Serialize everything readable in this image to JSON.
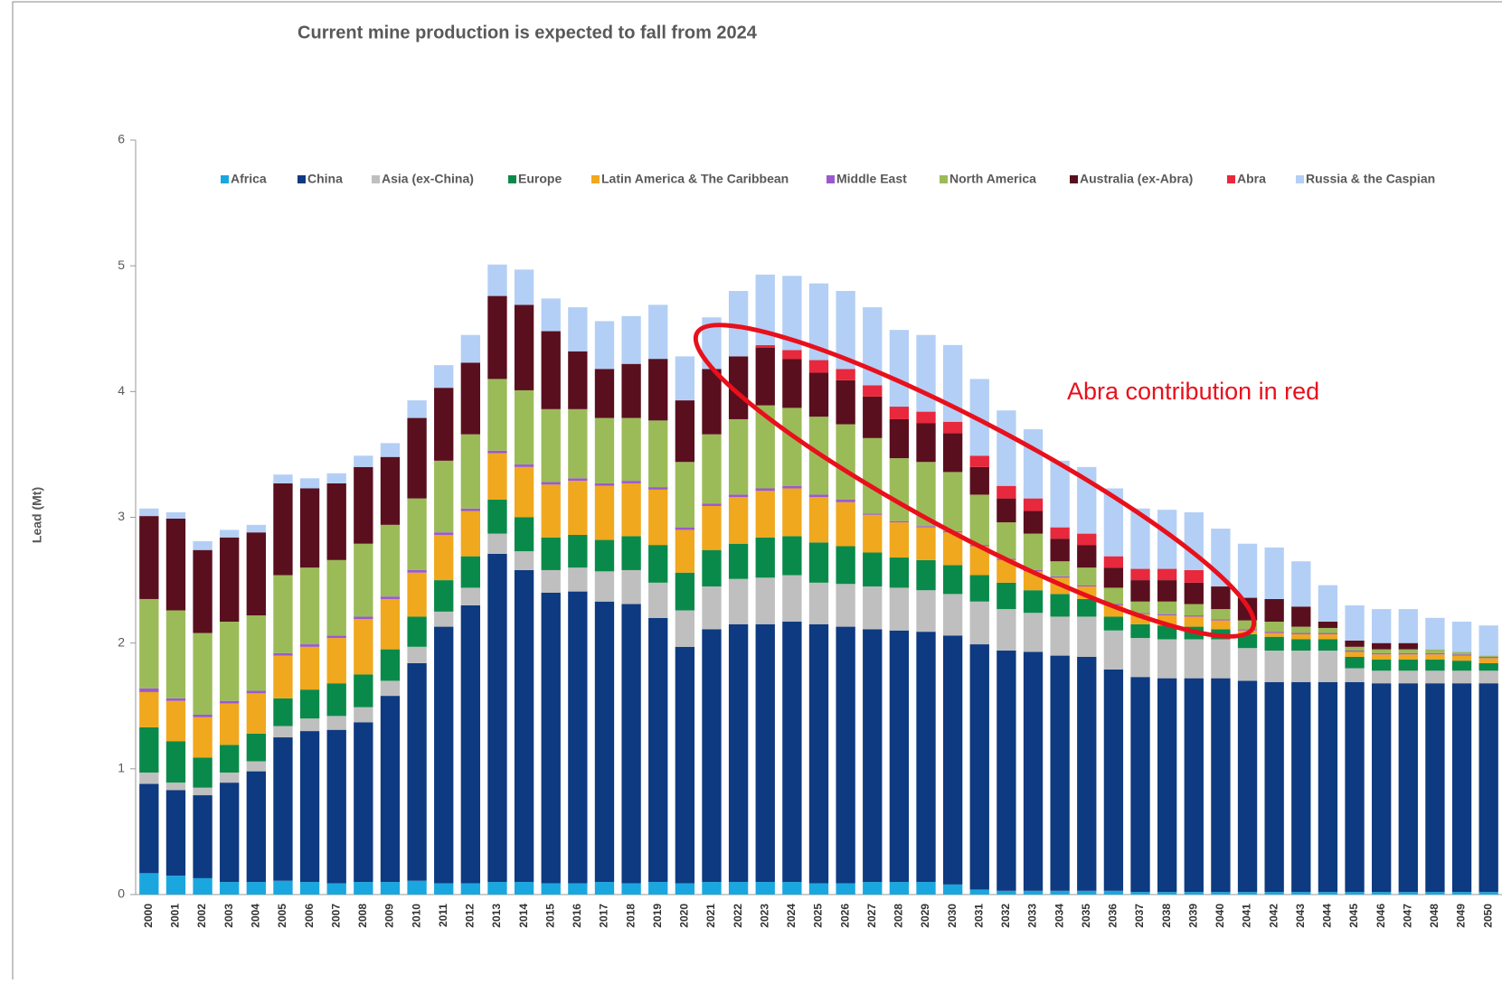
{
  "chart_data": {
    "type": "stacked_bar",
    "title": "Current mine production is expected to fall from 2024",
    "y_label": "Lead (Mt)",
    "annotation": "Abra contribution  in red",
    "categories": [
      "2000",
      "2001",
      "2002",
      "2003",
      "2004",
      "2005",
      "2006",
      "2007",
      "2008",
      "2009",
      "2010",
      "2011",
      "2012",
      "2013",
      "2014",
      "2015",
      "2016",
      "2017",
      "2018",
      "2019",
      "2020",
      "2021",
      "2022",
      "2023",
      "2024",
      "2025",
      "2026",
      "2027",
      "2028",
      "2029",
      "2030",
      "2031",
      "2032",
      "2033",
      "2034",
      "2035",
      "2036",
      "2037",
      "2038",
      "2039",
      "2040",
      "2041",
      "2042",
      "2043",
      "2044",
      "2045",
      "2046",
      "2047",
      "2048",
      "2049",
      "2050"
    ],
    "ylim": [
      0,
      6
    ],
    "yticks": [
      0,
      1,
      2,
      3,
      4,
      5,
      6
    ],
    "grid": false,
    "legend": "top",
    "series": [
      {
        "name": "Africa",
        "color": "#1aa7e0",
        "values": [
          0.17,
          0.15,
          0.13,
          0.1,
          0.1,
          0.11,
          0.1,
          0.09,
          0.1,
          0.1,
          0.11,
          0.09,
          0.09,
          0.1,
          0.1,
          0.09,
          0.09,
          0.1,
          0.09,
          0.1,
          0.09,
          0.1,
          0.1,
          0.1,
          0.1,
          0.09,
          0.09,
          0.1,
          0.1,
          0.1,
          0.08,
          0.04,
          0.03,
          0.03,
          0.03,
          0.03,
          0.03,
          0.02,
          0.02,
          0.02,
          0.02,
          0.02,
          0.02,
          0.02,
          0.02,
          0.02,
          0.02,
          0.02,
          0.02,
          0.02,
          0.02
        ]
      },
      {
        "name": "China",
        "color": "#0d3a80",
        "values": [
          0.71,
          0.68,
          0.66,
          0.79,
          0.88,
          1.14,
          1.2,
          1.22,
          1.27,
          1.48,
          1.73,
          2.04,
          2.21,
          2.61,
          2.48,
          2.31,
          2.32,
          2.23,
          2.22,
          2.1,
          1.88,
          2.01,
          2.05,
          2.05,
          2.07,
          2.06,
          2.04,
          2.01,
          2.0,
          1.99,
          1.98,
          1.95,
          1.91,
          1.9,
          1.87,
          1.86,
          1.76,
          1.71,
          1.7,
          1.7,
          1.7,
          1.68,
          1.67,
          1.67,
          1.67,
          1.67,
          1.66,
          1.66,
          1.66,
          1.66,
          1.66
        ]
      },
      {
        "name": "Asia (ex-China)",
        "color": "#bfbfbf",
        "values": [
          0.09,
          0.06,
          0.06,
          0.08,
          0.08,
          0.09,
          0.1,
          0.11,
          0.12,
          0.12,
          0.13,
          0.12,
          0.14,
          0.16,
          0.15,
          0.18,
          0.19,
          0.24,
          0.27,
          0.28,
          0.29,
          0.34,
          0.36,
          0.37,
          0.37,
          0.33,
          0.34,
          0.34,
          0.34,
          0.33,
          0.33,
          0.34,
          0.33,
          0.31,
          0.31,
          0.32,
          0.31,
          0.31,
          0.31,
          0.31,
          0.31,
          0.26,
          0.25,
          0.25,
          0.25,
          0.11,
          0.1,
          0.1,
          0.1,
          0.1,
          0.1
        ]
      },
      {
        "name": "Europe",
        "color": "#0a8a4a",
        "values": [
          0.36,
          0.33,
          0.24,
          0.22,
          0.22,
          0.22,
          0.23,
          0.26,
          0.26,
          0.25,
          0.24,
          0.25,
          0.25,
          0.27,
          0.27,
          0.26,
          0.26,
          0.25,
          0.27,
          0.3,
          0.3,
          0.29,
          0.28,
          0.32,
          0.31,
          0.32,
          0.3,
          0.27,
          0.24,
          0.24,
          0.23,
          0.21,
          0.21,
          0.18,
          0.18,
          0.14,
          0.11,
          0.11,
          0.11,
          0.1,
          0.08,
          0.11,
          0.11,
          0.09,
          0.09,
          0.09,
          0.09,
          0.09,
          0.09,
          0.08,
          0.06
        ]
      },
      {
        "name": "Latin America & The Caribbean",
        "color": "#f0a81e",
        "values": [
          0.28,
          0.32,
          0.32,
          0.33,
          0.32,
          0.34,
          0.34,
          0.36,
          0.44,
          0.4,
          0.35,
          0.36,
          0.36,
          0.37,
          0.4,
          0.42,
          0.43,
          0.43,
          0.42,
          0.44,
          0.34,
          0.35,
          0.37,
          0.37,
          0.38,
          0.36,
          0.35,
          0.3,
          0.28,
          0.26,
          0.26,
          0.23,
          0.18,
          0.15,
          0.13,
          0.1,
          0.09,
          0.08,
          0.08,
          0.08,
          0.07,
          0.03,
          0.03,
          0.04,
          0.04,
          0.04,
          0.04,
          0.04,
          0.04,
          0.04,
          0.04
        ]
      },
      {
        "name": "Middle East",
        "color": "#9b59d0",
        "values": [
          0.03,
          0.02,
          0.02,
          0.02,
          0.02,
          0.02,
          0.02,
          0.02,
          0.02,
          0.02,
          0.02,
          0.02,
          0.02,
          0.02,
          0.02,
          0.02,
          0.02,
          0.02,
          0.02,
          0.02,
          0.02,
          0.02,
          0.02,
          0.02,
          0.02,
          0.02,
          0.02,
          0.01,
          0.01,
          0.01,
          0.01,
          0.01,
          0.01,
          0.01,
          0.01,
          0.01,
          0.01,
          0.01,
          0.01,
          0.01,
          0.01,
          0.01,
          0.01,
          0.01,
          0.01,
          0.01,
          0.01,
          0.01,
          0.01,
          0.01,
          0.01
        ]
      },
      {
        "name": "North America",
        "color": "#9bbb59",
        "values": [
          0.71,
          0.7,
          0.65,
          0.63,
          0.6,
          0.62,
          0.61,
          0.6,
          0.58,
          0.57,
          0.57,
          0.57,
          0.59,
          0.57,
          0.59,
          0.58,
          0.55,
          0.52,
          0.5,
          0.53,
          0.52,
          0.55,
          0.6,
          0.66,
          0.62,
          0.62,
          0.6,
          0.6,
          0.5,
          0.51,
          0.47,
          0.4,
          0.29,
          0.29,
          0.12,
          0.14,
          0.13,
          0.09,
          0.1,
          0.09,
          0.08,
          0.07,
          0.08,
          0.05,
          0.04,
          0.03,
          0.03,
          0.03,
          0.03,
          0.02,
          0.01
        ]
      },
      {
        "name": "Australia (ex-Abra)",
        "color": "#5a0f1e",
        "values": [
          0.66,
          0.73,
          0.66,
          0.67,
          0.66,
          0.73,
          0.63,
          0.61,
          0.61,
          0.54,
          0.64,
          0.58,
          0.57,
          0.66,
          0.68,
          0.62,
          0.46,
          0.39,
          0.43,
          0.49,
          0.49,
          0.52,
          0.5,
          0.46,
          0.39,
          0.35,
          0.35,
          0.33,
          0.31,
          0.31,
          0.31,
          0.22,
          0.19,
          0.18,
          0.18,
          0.18,
          0.16,
          0.17,
          0.17,
          0.17,
          0.18,
          0.18,
          0.18,
          0.16,
          0.05,
          0.05,
          0.05,
          0.05,
          0,
          0,
          0
        ]
      },
      {
        "name": "Abra",
        "color": "#e8283c",
        "values": [
          0,
          0,
          0,
          0,
          0,
          0,
          0,
          0,
          0,
          0,
          0,
          0,
          0,
          0,
          0,
          0,
          0,
          0,
          0,
          0,
          0,
          0,
          0,
          0.02,
          0.07,
          0.1,
          0.09,
          0.09,
          0.1,
          0.09,
          0.09,
          0.09,
          0.1,
          0.1,
          0.09,
          0.09,
          0.09,
          0.09,
          0.09,
          0.1,
          0,
          0,
          0,
          0,
          0,
          0,
          0,
          0,
          0,
          0,
          0
        ]
      },
      {
        "name": "Russia & the Caspian",
        "color": "#b4cff5",
        "values": [
          0.06,
          0.05,
          0.07,
          0.06,
          0.06,
          0.07,
          0.08,
          0.08,
          0.09,
          0.11,
          0.14,
          0.18,
          0.22,
          0.25,
          0.28,
          0.26,
          0.35,
          0.38,
          0.38,
          0.43,
          0.35,
          0.41,
          0.52,
          0.56,
          0.59,
          0.61,
          0.62,
          0.62,
          0.61,
          0.61,
          0.61,
          0.61,
          0.6,
          0.55,
          0.53,
          0.53,
          0.54,
          0.48,
          0.47,
          0.46,
          0.46,
          0.43,
          0.41,
          0.36,
          0.29,
          0.28,
          0.27,
          0.27,
          0.25,
          0.24,
          0.24
        ]
      }
    ]
  }
}
